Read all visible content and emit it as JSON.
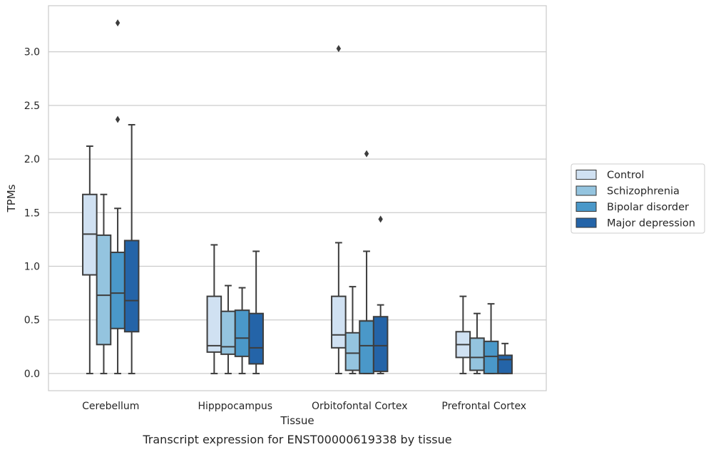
{
  "chart_data": {
    "type": "box",
    "title": "",
    "caption": "Transcript expression for ENST00000619338 by tissue",
    "xlabel": "Tissue",
    "ylabel": "TPMs",
    "ylim": [
      -0.16,
      3.43
    ],
    "yticks": [
      "0.0",
      "0.5",
      "1.0",
      "1.5",
      "2.0",
      "2.5",
      "3.0"
    ],
    "ytick_values": [
      0,
      0.5,
      1.0,
      1.5,
      2.0,
      2.5,
      3.0
    ],
    "grid": "horizontal",
    "legend_position": "right",
    "categories": [
      "Cerebellum",
      "Hipppocampus",
      "Orbitofontal Cortex",
      "Prefrontal Cortex"
    ],
    "series": [
      {
        "name": "Control",
        "color": "#d0e1f2",
        "boxes": [
          {
            "min": 0.0,
            "q1": 0.92,
            "median": 1.3,
            "q3": 1.67,
            "max": 2.12,
            "outliers": []
          },
          {
            "min": 0.0,
            "q1": 0.2,
            "median": 0.26,
            "q3": 0.72,
            "max": 1.2,
            "outliers": []
          },
          {
            "min": 0.0,
            "q1": 0.24,
            "median": 0.36,
            "q3": 0.72,
            "max": 1.22,
            "outliers": [
              3.03
            ]
          },
          {
            "min": 0.0,
            "q1": 0.15,
            "median": 0.27,
            "q3": 0.39,
            "max": 0.72,
            "outliers": []
          }
        ]
      },
      {
        "name": "Schizophrenia",
        "color": "#94c4df",
        "boxes": [
          {
            "min": 0.0,
            "q1": 0.27,
            "median": 0.73,
            "q3": 1.29,
            "max": 1.67,
            "outliers": []
          },
          {
            "min": 0.0,
            "q1": 0.18,
            "median": 0.25,
            "q3": 0.58,
            "max": 0.82,
            "outliers": []
          },
          {
            "min": 0.0,
            "q1": 0.03,
            "median": 0.19,
            "q3": 0.38,
            "max": 0.81,
            "outliers": []
          },
          {
            "min": 0.0,
            "q1": 0.03,
            "median": 0.15,
            "q3": 0.33,
            "max": 0.56,
            "outliers": []
          }
        ]
      },
      {
        "name": "Bipolar disorder",
        "color": "#4a98c9",
        "boxes": [
          {
            "min": 0.0,
            "q1": 0.42,
            "median": 0.75,
            "q3": 1.13,
            "max": 1.54,
            "outliers": [
              2.37,
              3.27
            ]
          },
          {
            "min": 0.0,
            "q1": 0.16,
            "median": 0.33,
            "q3": 0.59,
            "max": 0.8,
            "outliers": []
          },
          {
            "min": 0.0,
            "q1": 0.0,
            "median": 0.26,
            "q3": 0.49,
            "max": 1.14,
            "outliers": [
              2.05
            ]
          },
          {
            "min": 0.0,
            "q1": 0.0,
            "median": 0.16,
            "q3": 0.3,
            "max": 0.65,
            "outliers": []
          }
        ]
      },
      {
        "name": "Major depression",
        "color": "#2464a8",
        "boxes": [
          {
            "min": 0.0,
            "q1": 0.39,
            "median": 0.68,
            "q3": 1.24,
            "max": 2.32,
            "outliers": []
          },
          {
            "min": 0.0,
            "q1": 0.09,
            "median": 0.24,
            "q3": 0.56,
            "max": 1.14,
            "outliers": []
          },
          {
            "min": 0.0,
            "q1": 0.02,
            "median": 0.26,
            "q3": 0.53,
            "max": 0.64,
            "outliers": [
              1.44
            ]
          },
          {
            "min": 0.0,
            "q1": 0.0,
            "median": 0.13,
            "q3": 0.17,
            "max": 0.28,
            "outliers": []
          }
        ]
      }
    ]
  }
}
